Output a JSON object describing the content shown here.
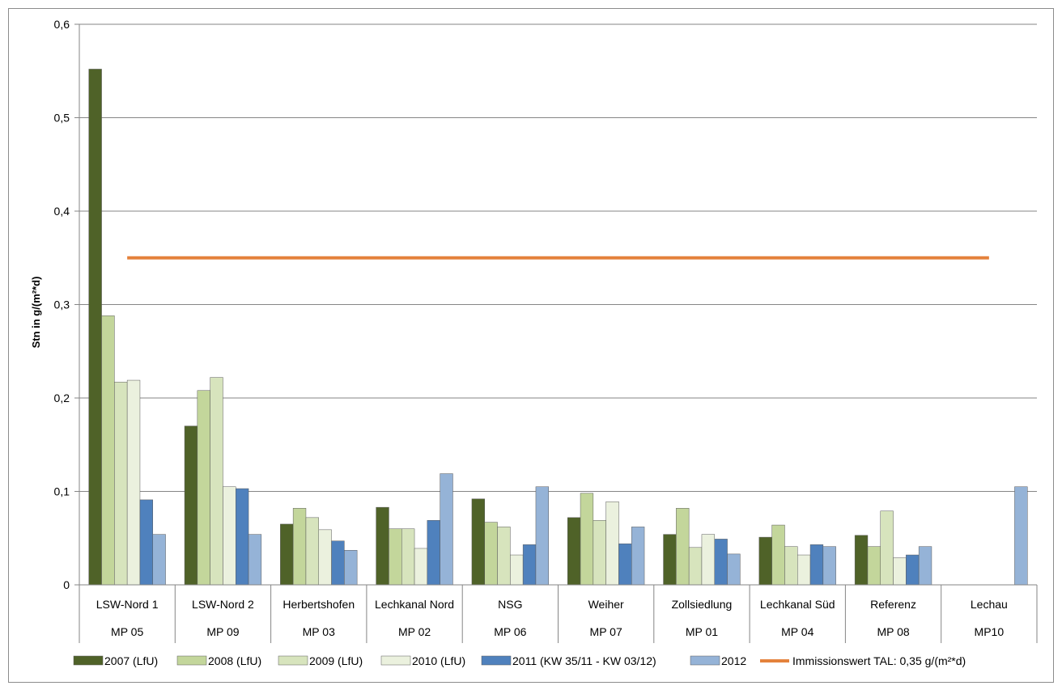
{
  "chart_data": {
    "type": "bar",
    "title": "",
    "xlabel": "",
    "ylabel": "Stn in g/(m²*d)",
    "ylim": [
      0,
      0.6
    ],
    "yticks": [
      "0",
      "0,1",
      "0,2",
      "0,3",
      "0,4",
      "0,5",
      "0,6"
    ],
    "grid": true,
    "legend_position": "bottom",
    "categories": [
      "LSW-Nord 1",
      "LSW-Nord 2",
      "Herbertshofen",
      "Lechkanal Nord",
      "NSG",
      "Weiher",
      "Zollsiedlung",
      "Lechkanal Süd",
      "Referenz",
      "Lechau"
    ],
    "subcategories": [
      "MP 05",
      "MP 09",
      "MP 03",
      "MP 02",
      "MP 06",
      "MP 07",
      "MP 01",
      "MP 04",
      "MP 08",
      "MP10"
    ],
    "series": [
      {
        "name": "2007 (LfU)",
        "color": "#4f6228",
        "values": [
          0.552,
          0.17,
          0.065,
          0.083,
          0.092,
          0.072,
          0.054,
          0.051,
          0.053,
          null
        ]
      },
      {
        "name": "2008 (LfU)",
        "color": "#c3d69b",
        "values": [
          0.288,
          0.208,
          0.082,
          0.06,
          0.067,
          0.098,
          0.082,
          0.064,
          0.041,
          null
        ]
      },
      {
        "name": "2009 (LfU)",
        "color": "#d7e4bd",
        "values": [
          0.217,
          0.222,
          0.072,
          0.06,
          0.062,
          0.069,
          0.04,
          0.041,
          0.079,
          null
        ]
      },
      {
        "name": "2010 (LfU)",
        "color": "#ebf1de",
        "values": [
          0.219,
          0.105,
          0.059,
          0.039,
          0.032,
          0.089,
          0.054,
          0.032,
          0.029,
          null
        ]
      },
      {
        "name": "2011 (KW 35/11 - KW 03/12)",
        "color": "#4f81bd",
        "values": [
          0.091,
          0.103,
          0.047,
          0.069,
          0.043,
          0.044,
          0.049,
          0.043,
          0.032,
          null
        ]
      },
      {
        "name": "2012",
        "color": "#95b3d7",
        "values": [
          0.054,
          0.054,
          0.037,
          0.119,
          0.105,
          0.062,
          0.033,
          0.041,
          0.041,
          0.105
        ]
      }
    ],
    "reference_line": {
      "name": "Immissionswert  TAL: 0,35 g/(m²*d)",
      "value": 0.35,
      "color": "#e4823c"
    }
  }
}
